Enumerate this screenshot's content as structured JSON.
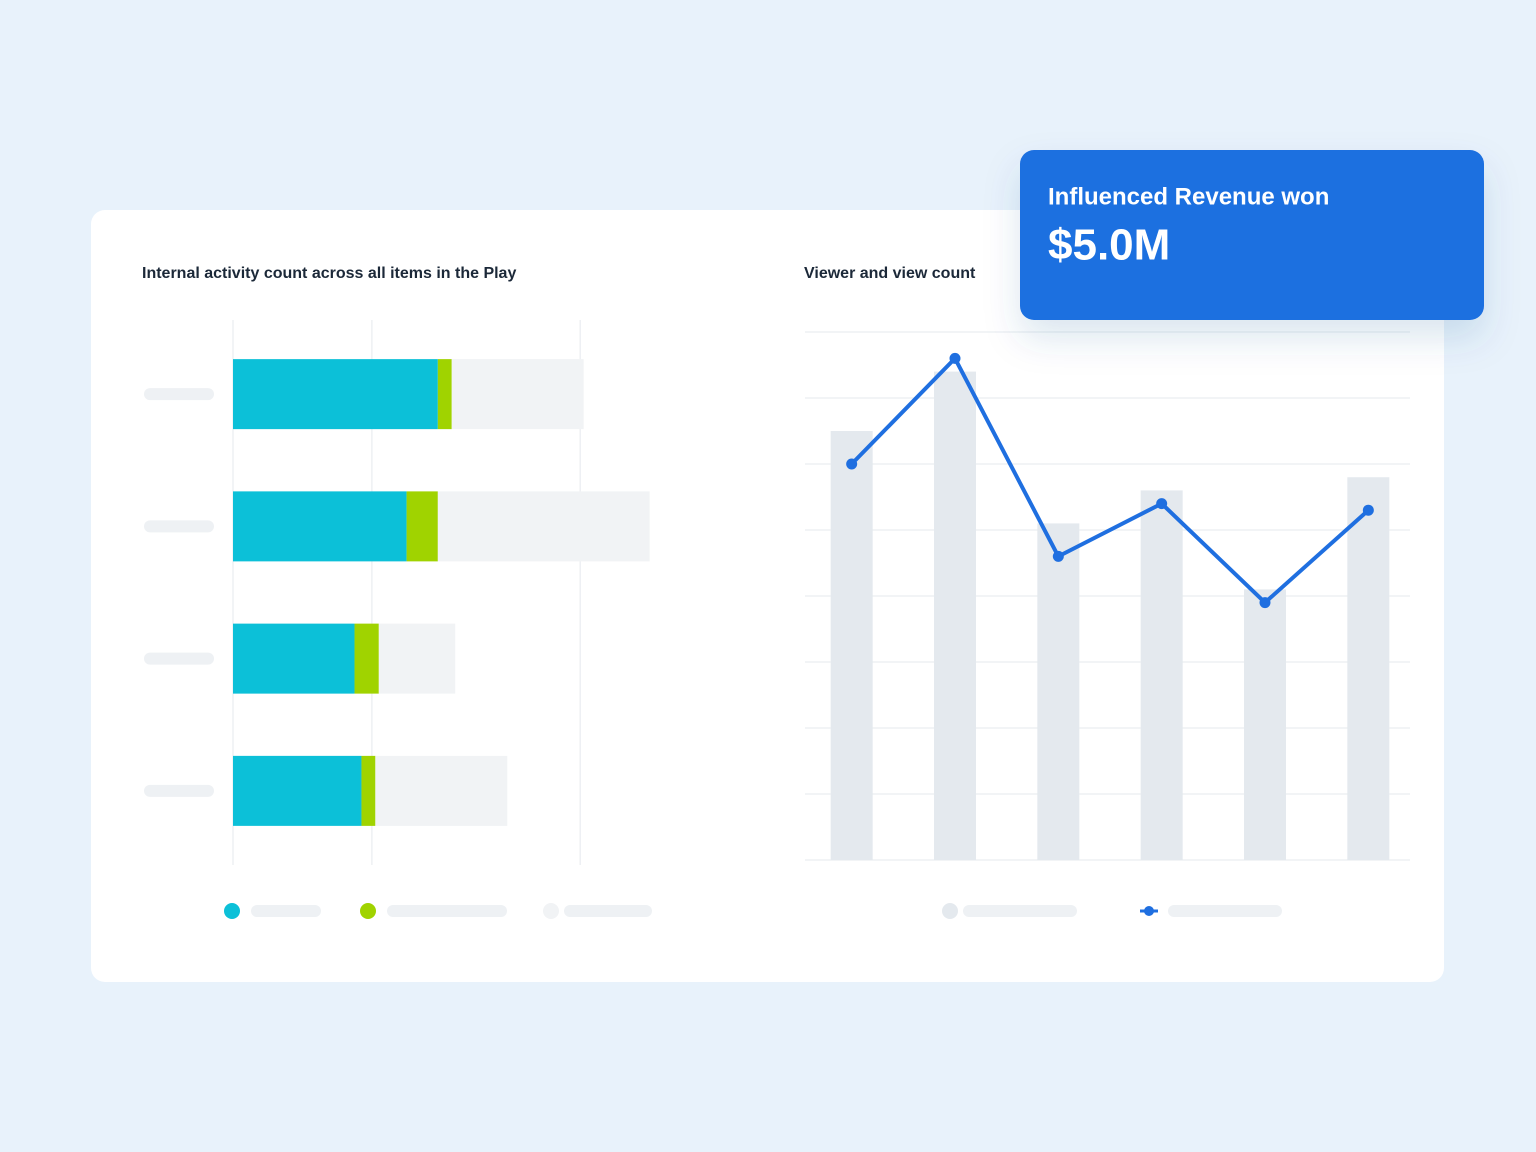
{
  "card": {
    "title": "Influenced Revenue won",
    "value": "$5.0M"
  },
  "chart_data": [
    {
      "type": "bar",
      "orientation": "horizontal",
      "stacked": true,
      "title": "Internal activity count across all items in the Play",
      "categories": [
        null,
        null,
        null,
        null
      ],
      "series": [
        {
          "color": "#0cc0d8",
          "values": [
            5.9,
            5.0,
            3.5,
            3.7
          ]
        },
        {
          "color": "#a0d300",
          "values": [
            0.4,
            0.9,
            0.7,
            0.4
          ]
        },
        {
          "color": "#f1f3f5",
          "values": [
            3.8,
            6.1,
            2.2,
            3.8
          ]
        }
      ],
      "xlim": [
        0,
        12.5
      ],
      "xticks": [
        0,
        4,
        10
      ],
      "grid": true
    },
    {
      "type": "line",
      "title": "Viewer and view count",
      "categories": [
        null,
        null,
        null,
        null,
        null,
        null
      ],
      "series": [
        {
          "type": "bar",
          "color": "#e4e9ee",
          "values": [
            6.5,
            7.4,
            5.1,
            5.6,
            4.1,
            5.8
          ]
        },
        {
          "type": "line",
          "color": "#1f6fe0",
          "values": [
            6.0,
            7.6,
            4.6,
            5.4,
            3.9,
            5.3
          ]
        }
      ],
      "ylim": [
        0,
        8
      ],
      "yticks": [
        0,
        1,
        2,
        3,
        4,
        5,
        6,
        7,
        8
      ],
      "grid": true
    }
  ]
}
